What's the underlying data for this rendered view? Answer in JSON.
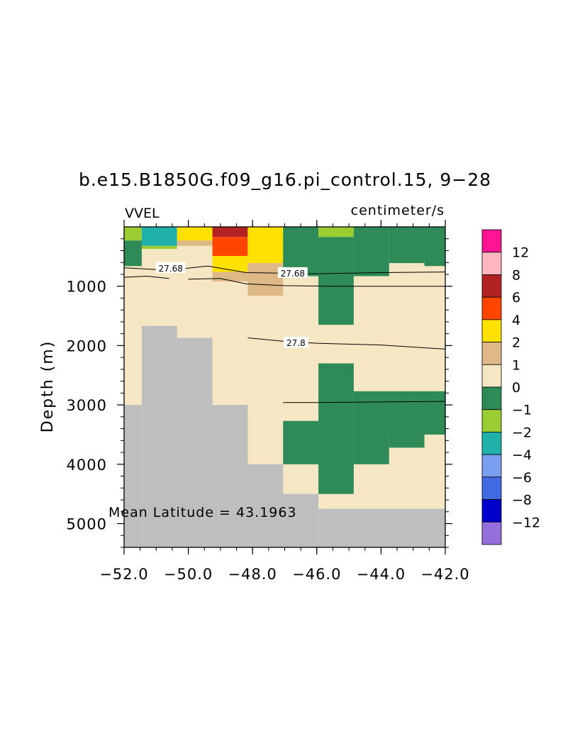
{
  "chart_data": {
    "type": "heatmap",
    "title": "b.e15.B1850G.f09_g16.pi_control.15, 9−28",
    "variable": "VVEL",
    "units": "centimeter/s",
    "ylabel": "Depth (m)",
    "xlabel": "",
    "xlim": [
      -52,
      -42
    ],
    "ylim": [
      5400,
      0
    ],
    "x_ticks": [
      -52,
      -50,
      -48,
      -46,
      -44,
      -42
    ],
    "x_tick_labels": [
      "−52.0",
      "−50.0",
      "−48.0",
      "−46.0",
      "−44.0",
      "−42.0"
    ],
    "y_ticks": [
      1000,
      2000,
      3000,
      4000,
      5000
    ],
    "y_tick_labels": [
      "1000",
      "2000",
      "3000",
      "4000",
      "5000"
    ],
    "annotation": "Mean Latitude = 43.1963",
    "land_color": "#bebebe",
    "colorbar": {
      "labels": [
        "12",
        "8",
        "6",
        "4",
        "2",
        "1",
        "0",
        "−1",
        "−2",
        "−4",
        "−6",
        "−8",
        "−12"
      ],
      "colors": [
        "#ff1493",
        "#ffb6c1",
        "#b22222",
        "#ff4500",
        "#ffe100",
        "#deb887",
        "#f5e6c4",
        "#2e8b57",
        "#9acd32",
        "#20b2aa",
        "#7b9ff0",
        "#4169e1",
        "#0000cd",
        "#9370db"
      ]
    },
    "cells": [
      {
        "x0": -52.0,
        "x1": -51.45,
        "z0": 0,
        "z1": 230,
        "color": "#9acd32"
      },
      {
        "x0": -52.0,
        "x1": -51.45,
        "z0": 230,
        "z1": 660,
        "color": "#2e8b57"
      },
      {
        "x0": -51.45,
        "x1": -50.35,
        "z0": 0,
        "z1": 320,
        "color": "#20b2aa"
      },
      {
        "x0": -51.45,
        "x1": -50.35,
        "z0": 320,
        "z1": 370,
        "color": "#9acd32"
      },
      {
        "x0": -50.35,
        "x1": -49.25,
        "z0": 0,
        "z1": 230,
        "color": "#ffe100"
      },
      {
        "x0": -50.35,
        "x1": -49.25,
        "z0": 230,
        "z1": 320,
        "color": "#deb887"
      },
      {
        "x0": -49.25,
        "x1": -48.15,
        "z0": 0,
        "z1": 170,
        "color": "#b22222"
      },
      {
        "x0": -49.25,
        "x1": -48.15,
        "z0": 170,
        "z1": 490,
        "color": "#ff4500"
      },
      {
        "x0": -49.25,
        "x1": -48.15,
        "z0": 490,
        "z1": 760,
        "color": "#ffe100"
      },
      {
        "x0": -49.25,
        "x1": -48.15,
        "z0": 760,
        "z1": 920,
        "color": "#deb887"
      },
      {
        "x0": -48.15,
        "x1": -47.05,
        "z0": 0,
        "z1": 610,
        "color": "#ffe100"
      },
      {
        "x0": -48.15,
        "x1": -47.05,
        "z0": 610,
        "z1": 1160,
        "color": "#deb887"
      },
      {
        "x0": -47.05,
        "x1": -45.95,
        "z0": 0,
        "z1": 830,
        "color": "#2e8b57"
      },
      {
        "x0": -45.95,
        "x1": -44.85,
        "z0": 0,
        "z1": 170,
        "color": "#9acd32"
      },
      {
        "x0": -45.95,
        "x1": -44.85,
        "z0": 170,
        "z1": 1650,
        "color": "#2e8b57"
      },
      {
        "x0": -44.85,
        "x1": -43.75,
        "z0": 0,
        "z1": 830,
        "color": "#2e8b57"
      },
      {
        "x0": -43.75,
        "x1": -42.65,
        "z0": 0,
        "z1": 610,
        "color": "#2e8b57"
      },
      {
        "x0": -42.65,
        "x1": -42.0,
        "z0": 0,
        "z1": 660,
        "color": "#2e8b57"
      },
      {
        "x0": -45.95,
        "x1": -44.85,
        "z0": 2300,
        "z1": 4500,
        "color": "#2e8b57"
      },
      {
        "x0": -44.85,
        "x1": -42.0,
        "z0": 2770,
        "z1": 3500,
        "color": "#2e8b57"
      },
      {
        "x0": -47.05,
        "x1": -45.95,
        "z0": 3270,
        "z1": 4000,
        "color": "#2e8b57"
      },
      {
        "x0": -44.85,
        "x1": -43.75,
        "z0": 3500,
        "z1": 4000,
        "color": "#2e8b57"
      },
      {
        "x0": -43.75,
        "x1": -42.65,
        "z0": 3500,
        "z1": 3720,
        "color": "#2e8b57"
      }
    ],
    "land_columns": [
      {
        "x0": -52.0,
        "x1": -51.45,
        "z_top": 3000
      },
      {
        "x0": -51.45,
        "x1": -50.35,
        "z_top": 1670
      },
      {
        "x0": -50.35,
        "x1": -49.25,
        "z_top": 1870
      },
      {
        "x0": -49.25,
        "x1": -48.15,
        "z_top": 3000
      },
      {
        "x0": -48.15,
        "x1": -47.05,
        "z_top": 4000
      },
      {
        "x0": -47.05,
        "x1": -45.95,
        "z_top": 4500
      },
      {
        "x0": -45.95,
        "x1": -42.0,
        "z_top": 4750
      }
    ],
    "contours": [
      {
        "label": "27.68",
        "label_x": -50.55,
        "label_z": 690,
        "points": [
          [
            -52,
            690
          ],
          [
            -50.6,
            730
          ],
          [
            -49.4,
            660
          ],
          [
            -48.2,
            770
          ],
          [
            -46.0,
            790
          ],
          [
            -44.0,
            770
          ],
          [
            -42,
            760
          ]
        ]
      },
      {
        "label": "27.68",
        "label_x": -46.75,
        "label_z": 775,
        "points": [
          [
            -52,
            850
          ],
          [
            -51.3,
            830
          ],
          [
            -50.6,
            870
          ]
        ]
      },
      {
        "label": "",
        "label_x": null,
        "label_z": null,
        "points": [
          [
            -50.0,
            880
          ],
          [
            -49.0,
            870
          ],
          [
            -48.2,
            960
          ],
          [
            -47.0,
            990
          ],
          [
            -45.5,
            1000
          ],
          [
            -44.0,
            1000
          ],
          [
            -42,
            1000
          ]
        ]
      },
      {
        "label": "27.8",
        "label_x": -46.65,
        "label_z": 1950,
        "points": [
          [
            -48.15,
            1870
          ],
          [
            -47.0,
            1930
          ],
          [
            -46.0,
            1960
          ],
          [
            -44.0,
            1990
          ],
          [
            -42,
            2060
          ]
        ]
      },
      {
        "label": "",
        "label_x": null,
        "label_z": null,
        "points": [
          [
            -47.05,
            2960
          ],
          [
            -46.0,
            2960
          ],
          [
            -44.0,
            2950
          ],
          [
            -42,
            2940
          ]
        ]
      }
    ]
  }
}
